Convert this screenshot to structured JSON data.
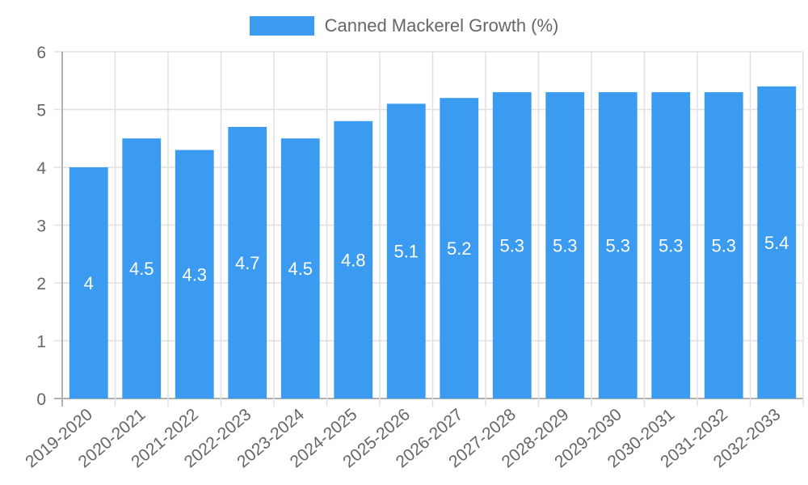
{
  "chart_data": {
    "type": "bar",
    "title": "",
    "legend": [
      "Canned Mackerel Growth (%)"
    ],
    "legend_position": "top",
    "xlabel": "",
    "ylabel": "",
    "ylim": [
      0,
      6
    ],
    "yticks": [
      0,
      1,
      2,
      3,
      4,
      5,
      6
    ],
    "grid": true,
    "categories": [
      "2019-2020",
      "2020-2021",
      "2021-2022",
      "2022-2023",
      "2023-2024",
      "2024-2025",
      "2025-2026",
      "2026-2027",
      "2027-2028",
      "2028-2029",
      "2029-2030",
      "2030-2031",
      "2031-2032",
      "2032-2033"
    ],
    "series": [
      {
        "name": "Canned Mackerel Growth (%)",
        "color": "#3a9bf0",
        "values": [
          4,
          4.5,
          4.3,
          4.7,
          4.5,
          4.8,
          5.1,
          5.2,
          5.3,
          5.3,
          5.3,
          5.3,
          5.3,
          5.4
        ],
        "labels": [
          "4",
          "4.5",
          "4.3",
          "4.7",
          "4.5",
          "4.8",
          "5.1",
          "5.2",
          "5.3",
          "5.3",
          "5.3",
          "5.3",
          "5.3",
          "5.4"
        ]
      }
    ]
  },
  "legend": {
    "label": "Canned Mackerel Growth (%)"
  }
}
